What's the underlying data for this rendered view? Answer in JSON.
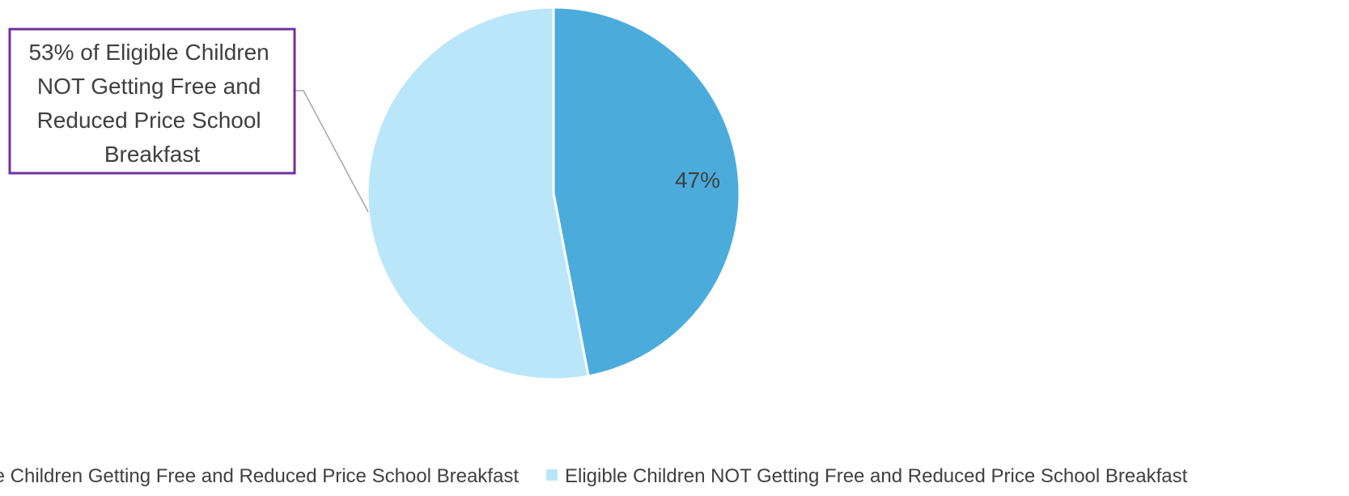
{
  "chart_data": {
    "type": "pie",
    "slices": [
      {
        "name": "Eligible Children Getting Free and Reduced Price School Breakfast",
        "value": 47,
        "label": "47%",
        "color": "#4BACDC"
      },
      {
        "name": "Eligible Children NOT Getting Free and Reduced Price School Breakfast",
        "value": 53,
        "label": "53% of Eligible Children NOT Getting Free and Reduced Price School Breakfast",
        "label_lines": [
          "53% of Eligible Children",
          "NOT Getting Free and",
          "Reduced Price School",
          "Breakfast"
        ],
        "color": "#BAE6FA"
      }
    ],
    "callout_border_color": "#7030A0",
    "legend": {
      "position": "bottom",
      "entries": [
        "Eligible Children Getting Free and Reduced Price School Breakfast",
        "Eligible Children NOT Getting Free and Reduced Price School Breakfast"
      ]
    }
  }
}
